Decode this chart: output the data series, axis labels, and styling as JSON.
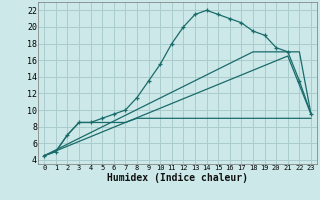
{
  "xlabel": "Humidex (Indice chaleur)",
  "bg_color": "#cce8e8",
  "grid_color": "#aacccc",
  "line_color": "#1a6b6b",
  "xlim": [
    -0.5,
    23.5
  ],
  "ylim": [
    3.5,
    23
  ],
  "yticks": [
    4,
    6,
    8,
    10,
    12,
    14,
    16,
    18,
    20,
    22
  ],
  "xticks": [
    0,
    1,
    2,
    3,
    4,
    5,
    6,
    7,
    8,
    9,
    10,
    11,
    12,
    13,
    14,
    15,
    16,
    17,
    18,
    19,
    20,
    21,
    22,
    23
  ],
  "series1_x": [
    0,
    1,
    2,
    3,
    4,
    5,
    6,
    7,
    8,
    9,
    10,
    11,
    12,
    13,
    14,
    15,
    16,
    17,
    18,
    19,
    20,
    21,
    22,
    23
  ],
  "series1_y": [
    4.5,
    5.0,
    7.0,
    8.5,
    8.5,
    9.0,
    9.5,
    10.0,
    11.5,
    13.5,
    15.5,
    18.0,
    20.0,
    21.5,
    22.0,
    21.5,
    21.0,
    20.5,
    19.5,
    19.0,
    17.5,
    17.0,
    13.5,
    9.5
  ],
  "series2_x": [
    0,
    1,
    2,
    3,
    4,
    5,
    6,
    7,
    8,
    9,
    10,
    11,
    12,
    13,
    14,
    15,
    16,
    17,
    18,
    19,
    20,
    21,
    22,
    23
  ],
  "series2_y": [
    4.5,
    5.0,
    7.0,
    8.5,
    8.5,
    8.5,
    8.5,
    8.5,
    9.0,
    9.0,
    9.0,
    9.0,
    9.0,
    9.0,
    9.0,
    9.0,
    9.0,
    9.0,
    9.0,
    9.0,
    9.0,
    9.0,
    9.0,
    9.0
  ],
  "series3_x": [
    0,
    18,
    22,
    23
  ],
  "series3_y": [
    4.5,
    17.0,
    17.0,
    9.5
  ],
  "series4_x": [
    0,
    21,
    23
  ],
  "series4_y": [
    4.5,
    16.5,
    9.5
  ]
}
